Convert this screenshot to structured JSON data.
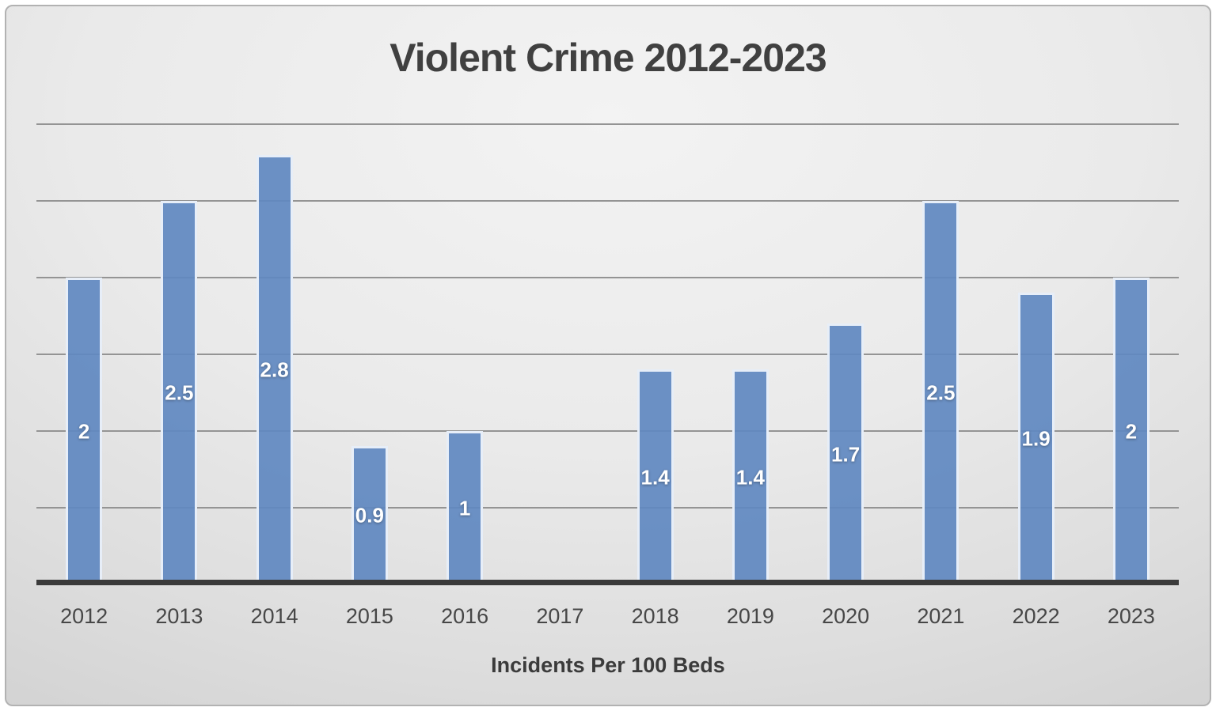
{
  "title": "Violent Crime 2012-2023",
  "xlabel": "Incidents Per 100 Beds",
  "chart_data": {
    "type": "bar",
    "title": "Violent Crime 2012-2023",
    "xlabel": "Incidents Per 100 Beds",
    "ylabel": "",
    "categories": [
      "2012",
      "2013",
      "2014",
      "2015",
      "2016",
      "2017",
      "2018",
      "2019",
      "2020",
      "2021",
      "2022",
      "2023"
    ],
    "values": [
      2,
      2.5,
      2.8,
      0.9,
      1,
      null,
      1.4,
      1.4,
      1.7,
      2.5,
      1.9,
      2
    ],
    "data_labels": [
      "2",
      "2.5",
      "2.8",
      "0.9",
      "1",
      "",
      "1.4",
      "1.4",
      "1.7",
      "2.5",
      "1.9",
      "2"
    ],
    "ylim": [
      0,
      3
    ],
    "grid_step": 0.5,
    "grid": true,
    "legend": false,
    "y_tick_labels_shown": false,
    "data_label_position": "inside-center",
    "colors": {
      "bar_fill": "#6189c1",
      "bar_border": "#e7eef8",
      "gridline": "#949494",
      "axis_line": "#3a3a3a",
      "title": "#404040",
      "tick": "#474747",
      "caption": "#3b3b3b",
      "data_label": "#ffffff"
    }
  }
}
